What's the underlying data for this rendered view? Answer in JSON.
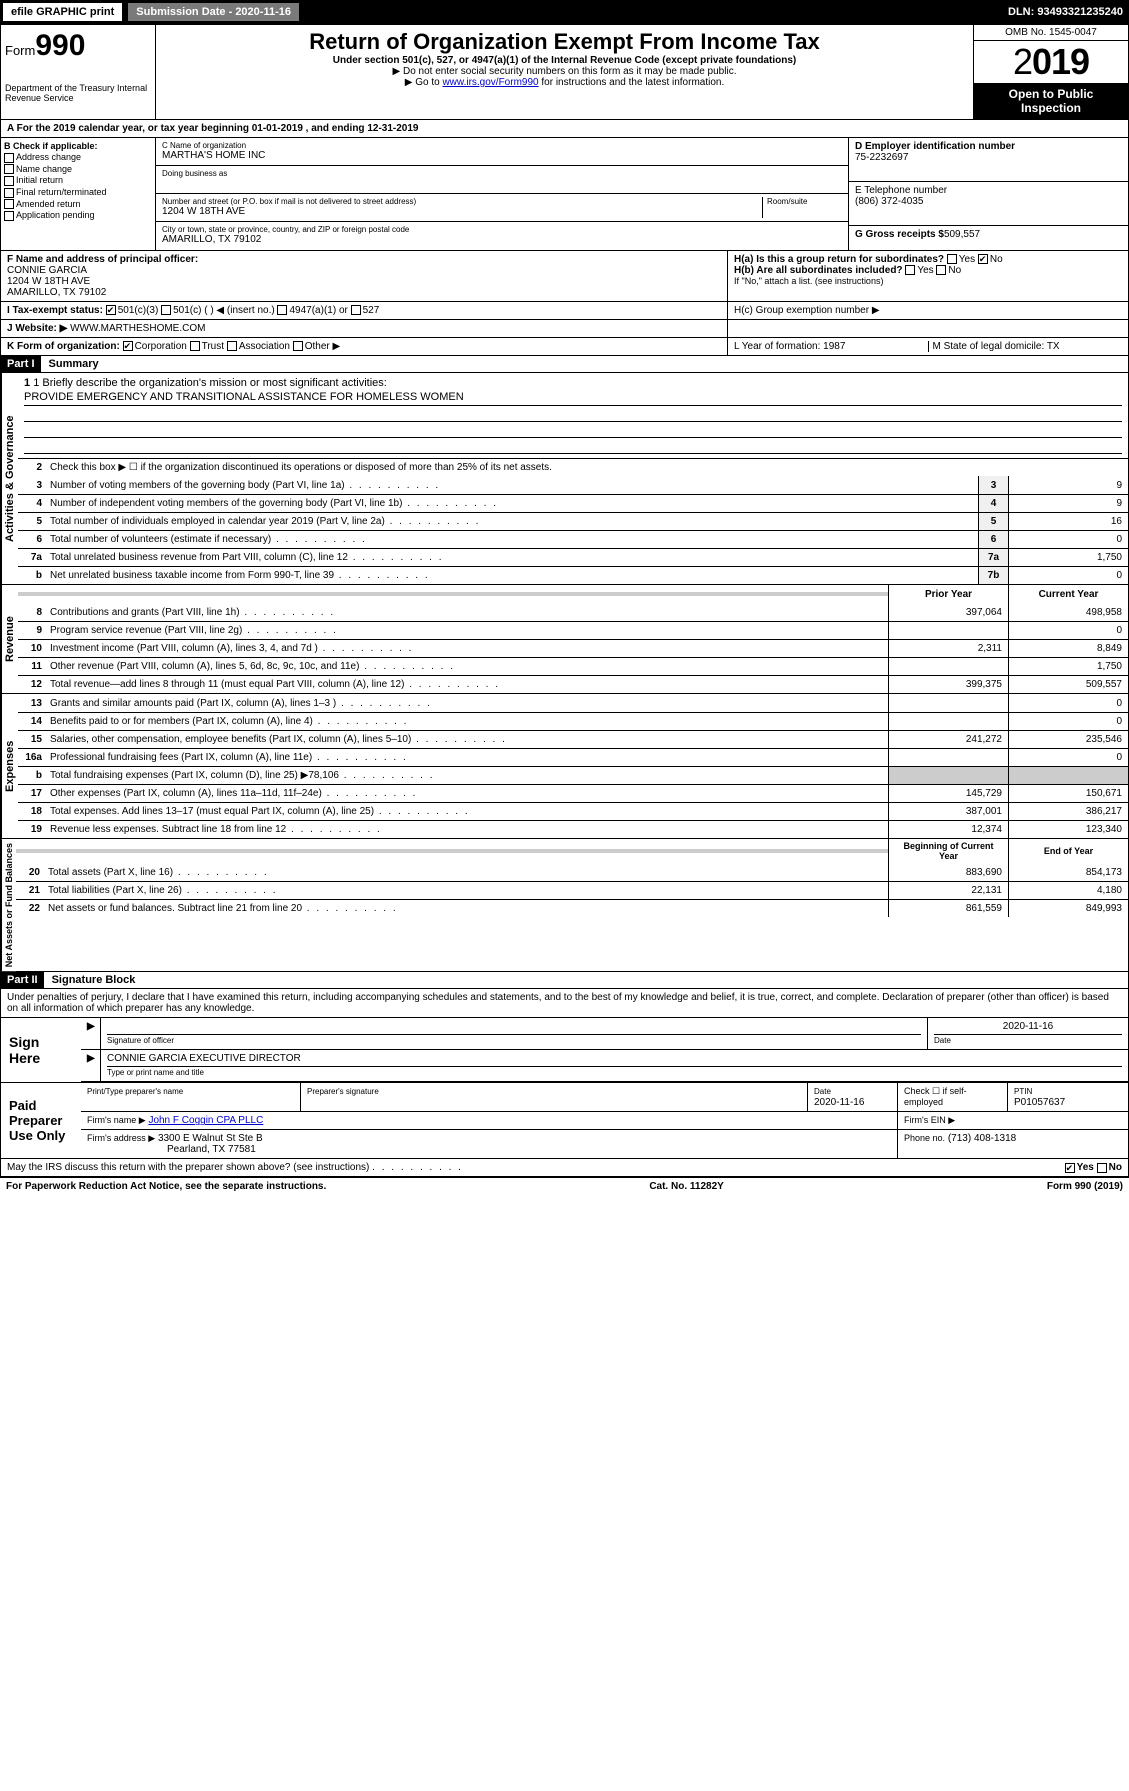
{
  "topbar": {
    "efile": "efile GRAPHIC print",
    "submission": "Submission Date - 2020-11-16",
    "dln": "DLN: 93493321235240"
  },
  "header": {
    "form": "Form",
    "form_no": "990",
    "dept": "Department of the Treasury\nInternal Revenue Service",
    "title": "Return of Organization Exempt From Income Tax",
    "sub": "Under section 501(c), 527, or 4947(a)(1) of the Internal Revenue Code (except private foundations)",
    "inst1": "▶ Do not enter social security numbers on this form as it may be made public.",
    "inst2": "▶ Go to www.irs.gov/Form990 for instructions and the latest information.",
    "inst2_link": "www.irs.gov/Form990",
    "omb": "OMB No. 1545-0047",
    "year": "2019",
    "open": "Open to Public Inspection"
  },
  "cal_year": "A For the 2019 calendar year, or tax year beginning 01-01-2019   , and ending 12-31-2019",
  "section_b": {
    "title": "B Check if applicable:",
    "items": [
      "Address change",
      "Name change",
      "Initial return",
      "Final return/terminated",
      "Amended return",
      "Application pending"
    ]
  },
  "section_c": {
    "name_label": "C Name of organization",
    "name": "MARTHA'S HOME INC",
    "dba_label": "Doing business as",
    "dba": "",
    "addr_label": "Number and street (or P.O. box if mail is not delivered to street address)",
    "room_label": "Room/suite",
    "addr": "1204 W 18TH AVE",
    "city_label": "City or town, state or province, country, and ZIP or foreign postal code",
    "city": "AMARILLO, TX  79102"
  },
  "section_d": {
    "ein_label": "D Employer identification number",
    "ein": "75-2232697",
    "phone_label": "E Telephone number",
    "phone": "(806) 372-4035",
    "gross_label": "G Gross receipts $",
    "gross": "509,557"
  },
  "section_f": {
    "label": "F  Name and address of principal officer:",
    "name": "CONNIE GARCIA",
    "addr1": "1204 W 18TH AVE",
    "addr2": "AMARILLO, TX  79102"
  },
  "section_h": {
    "a": "H(a)  Is this a group return for subordinates?",
    "b": "H(b)  Are all subordinates included?",
    "b_note": "If \"No,\" attach a list. (see instructions)",
    "c": "H(c)  Group exemption number ▶"
  },
  "tax_status": {
    "label": "I    Tax-exempt status:",
    "opts": [
      "501(c)(3)",
      "501(c) (   ) ◀ (insert no.)",
      "4947(a)(1) or",
      "527"
    ]
  },
  "website": {
    "label": "J   Website: ▶",
    "value": "WWW.MARTHESHOME.COM"
  },
  "section_k": {
    "label": "K Form of organization:",
    "opts": [
      "Corporation",
      "Trust",
      "Association",
      "Other ▶"
    ]
  },
  "section_l": "L Year of formation: 1987",
  "section_m": "M State of legal domicile: TX",
  "part1": {
    "header": "Part I",
    "title": "Summary",
    "vert1": "Activities & Governance",
    "vert2": "Revenue",
    "vert3": "Expenses",
    "vert4": "Net Assets or Fund Balances",
    "line1_label": "1  Briefly describe the organization's mission or most significant activities:",
    "line1_value": "PROVIDE EMERGENCY AND TRANSITIONAL ASSISTANCE FOR HOMELESS WOMEN",
    "line2": "Check this box ▶ ☐  if the organization discontinued its operations or disposed of more than 25% of its net assets.",
    "lines_gov": [
      {
        "n": "3",
        "d": "Number of voting members of the governing body (Part VI, line 1a)",
        "box": "3",
        "v": "9"
      },
      {
        "n": "4",
        "d": "Number of independent voting members of the governing body (Part VI, line 1b)",
        "box": "4",
        "v": "9"
      },
      {
        "n": "5",
        "d": "Total number of individuals employed in calendar year 2019 (Part V, line 2a)",
        "box": "5",
        "v": "16"
      },
      {
        "n": "6",
        "d": "Total number of volunteers (estimate if necessary)",
        "box": "6",
        "v": "0"
      },
      {
        "n": "7a",
        "d": "Total unrelated business revenue from Part VIII, column (C), line 12",
        "box": "7a",
        "v": "1,750"
      },
      {
        "n": "b",
        "d": "Net unrelated business taxable income from Form 990-T, line 39",
        "box": "7b",
        "v": "0"
      }
    ],
    "col_prior": "Prior Year",
    "col_current": "Current Year",
    "lines_rev": [
      {
        "n": "8",
        "d": "Contributions and grants (Part VIII, line 1h)",
        "p": "397,064",
        "c": "498,958"
      },
      {
        "n": "9",
        "d": "Program service revenue (Part VIII, line 2g)",
        "p": "",
        "c": "0"
      },
      {
        "n": "10",
        "d": "Investment income (Part VIII, column (A), lines 3, 4, and 7d )",
        "p": "2,311",
        "c": "8,849"
      },
      {
        "n": "11",
        "d": "Other revenue (Part VIII, column (A), lines 5, 6d, 8c, 9c, 10c, and 11e)",
        "p": "",
        "c": "1,750"
      },
      {
        "n": "12",
        "d": "Total revenue—add lines 8 through 11 (must equal Part VIII, column (A), line 12)",
        "p": "399,375",
        "c": "509,557"
      }
    ],
    "lines_exp": [
      {
        "n": "13",
        "d": "Grants and similar amounts paid (Part IX, column (A), lines 1–3 )",
        "p": "",
        "c": "0"
      },
      {
        "n": "14",
        "d": "Benefits paid to or for members (Part IX, column (A), line 4)",
        "p": "",
        "c": "0"
      },
      {
        "n": "15",
        "d": "Salaries, other compensation, employee benefits (Part IX, column (A), lines 5–10)",
        "p": "241,272",
        "c": "235,546"
      },
      {
        "n": "16a",
        "d": "Professional fundraising fees (Part IX, column (A), line 11e)",
        "p": "",
        "c": "0"
      },
      {
        "n": "b",
        "d": "Total fundraising expenses (Part IX, column (D), line 25) ▶78,106",
        "p": "gray",
        "c": "gray"
      },
      {
        "n": "17",
        "d": "Other expenses (Part IX, column (A), lines 11a–11d, 11f–24e)",
        "p": "145,729",
        "c": "150,671"
      },
      {
        "n": "18",
        "d": "Total expenses. Add lines 13–17 (must equal Part IX, column (A), line 25)",
        "p": "387,001",
        "c": "386,217"
      },
      {
        "n": "19",
        "d": "Revenue less expenses. Subtract line 18 from line 12",
        "p": "12,374",
        "c": "123,340"
      }
    ],
    "col_begin": "Beginning of Current Year",
    "col_end": "End of Year",
    "lines_net": [
      {
        "n": "20",
        "d": "Total assets (Part X, line 16)",
        "p": "883,690",
        "c": "854,173"
      },
      {
        "n": "21",
        "d": "Total liabilities (Part X, line 26)",
        "p": "22,131",
        "c": "4,180"
      },
      {
        "n": "22",
        "d": "Net assets or fund balances. Subtract line 21 from line 20",
        "p": "861,559",
        "c": "849,993"
      }
    ]
  },
  "part2": {
    "header": "Part II",
    "title": "Signature Block",
    "perjury": "Under penalties of perjury, I declare that I have examined this return, including accompanying schedules and statements, and to the best of my knowledge and belief, it is true, correct, and complete. Declaration of preparer (other than officer) is based on all information of which preparer has any knowledge.",
    "sign_here": "Sign Here",
    "sig_officer": "Signature of officer",
    "sig_date": "2020-11-16",
    "date_label": "Date",
    "officer_name": "CONNIE GARCIA  EXECUTIVE DIRECTOR",
    "name_label": "Type or print name and title",
    "paid": "Paid Preparer Use Only",
    "prep_name_label": "Print/Type preparer's name",
    "prep_sig_label": "Preparer's signature",
    "prep_date_label": "Date",
    "prep_date": "2020-11-16",
    "check_if": "Check ☐ if self-employed",
    "ptin_label": "PTIN",
    "ptin": "P01057637",
    "firm_name_label": "Firm's name    ▶",
    "firm_name": "John F Coggin CPA PLLC",
    "firm_ein_label": "Firm's EIN ▶",
    "firm_addr_label": "Firm's address ▶",
    "firm_addr": "3300 E Walnut St Ste B",
    "firm_city": "Pearland, TX  77581",
    "firm_phone_label": "Phone no.",
    "firm_phone": "(713) 408-1318",
    "discuss": "May the IRS discuss this return with the preparer shown above? (see instructions)",
    "yes": "Yes",
    "no": "No"
  },
  "footer": {
    "left": "For Paperwork Reduction Act Notice, see the separate instructions.",
    "mid": "Cat. No. 11282Y",
    "right": "Form 990 (2019)"
  }
}
